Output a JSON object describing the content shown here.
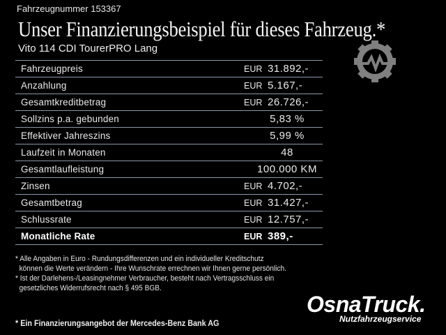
{
  "vehicle_number": "Fahrzeugnummer 153367",
  "title": "Unser Finanzierungsbeispiel für dieses Fahrzeug.*",
  "model": "Vito 114 CDI TourerPRO Lang",
  "rows": [
    {
      "label": "Fahrzeugpreis",
      "currency": "EUR",
      "value": "31.892,-"
    },
    {
      "label": "Anzahlung",
      "currency": "EUR",
      "value": "5.167,-"
    },
    {
      "label": "Gesamtkreditbetrag",
      "currency": "EUR",
      "value": "26.726,-"
    },
    {
      "label": "Sollzins p.a. gebunden",
      "currency": "",
      "value": "5,83 %"
    },
    {
      "label": "Effektiver Jahreszins",
      "currency": "",
      "value": "5,99 %"
    },
    {
      "label": "Laufzeit in Monaten",
      "currency": "",
      "value": "48"
    },
    {
      "label": "Gesamtlaufleistung",
      "currency": "",
      "value": "100.000 KM"
    },
    {
      "label": "Zinsen",
      "currency": "EUR",
      "value": "4.702,-"
    },
    {
      "label": "Gesamtbetrag",
      "currency": "EUR",
      "value": "31.427,-"
    },
    {
      "label": "Schlussrate",
      "currency": "EUR",
      "value": "12.757,-"
    },
    {
      "label": "Monatliche Rate",
      "currency": "EUR",
      "value": "389,-"
    }
  ],
  "notes": [
    "* Alle Angaben in Euro - Rundungsdifferenzen und ein individueller Kreditschutz",
    "  können die Werte verändern - Ihre Wunschrate errechnen wir Ihnen gerne persönlich.",
    "* Ist der Darlehens-/Leasingnehmer Verbraucher, besteht nach Vertragsschluss ein",
    "  gesetzliches Widerrufsrecht nach § 495 BGB."
  ],
  "bank_note": "* Ein Finanzierungsangebot der Mercedes-Benz Bank AG",
  "logo": {
    "name": "OsnaTruck.",
    "sub": "Nutzfahrzeugservice"
  },
  "icon": "gear-pulse-icon",
  "colors": {
    "background": "#000000",
    "divider": "#8a9aaa",
    "icon": "#808080"
  }
}
